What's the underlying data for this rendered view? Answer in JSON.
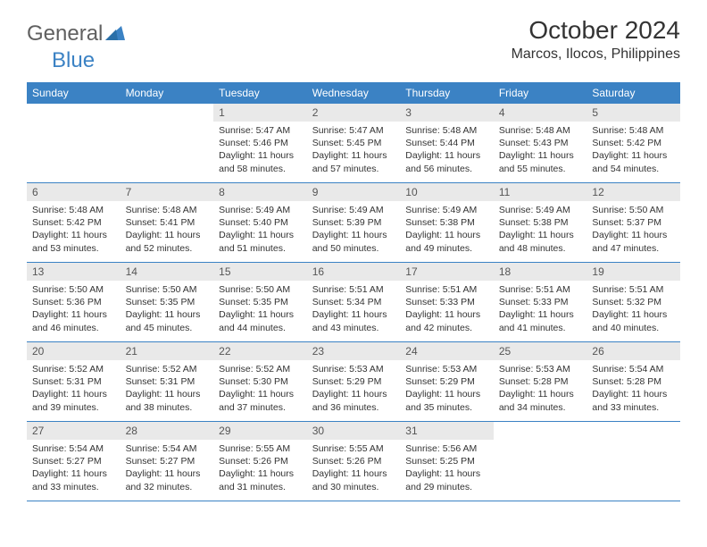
{
  "logo": {
    "text_general": "General",
    "text_blue": "Blue"
  },
  "title": "October 2024",
  "location": "Marcos, Ilocos, Philippines",
  "colors": {
    "header_bg": "#3b82c4",
    "daynum_bg": "#e9e9e9",
    "text": "#333333",
    "border": "#3b82c4"
  },
  "daynames": [
    "Sunday",
    "Monday",
    "Tuesday",
    "Wednesday",
    "Thursday",
    "Friday",
    "Saturday"
  ],
  "weeks": [
    [
      {
        "n": "",
        "sr": "",
        "ss": "",
        "dl": ""
      },
      {
        "n": "",
        "sr": "",
        "ss": "",
        "dl": ""
      },
      {
        "n": "1",
        "sr": "5:47 AM",
        "ss": "5:46 PM",
        "dl": "11 hours and 58 minutes."
      },
      {
        "n": "2",
        "sr": "5:47 AM",
        "ss": "5:45 PM",
        "dl": "11 hours and 57 minutes."
      },
      {
        "n": "3",
        "sr": "5:48 AM",
        "ss": "5:44 PM",
        "dl": "11 hours and 56 minutes."
      },
      {
        "n": "4",
        "sr": "5:48 AM",
        "ss": "5:43 PM",
        "dl": "11 hours and 55 minutes."
      },
      {
        "n": "5",
        "sr": "5:48 AM",
        "ss": "5:42 PM",
        "dl": "11 hours and 54 minutes."
      }
    ],
    [
      {
        "n": "6",
        "sr": "5:48 AM",
        "ss": "5:42 PM",
        "dl": "11 hours and 53 minutes."
      },
      {
        "n": "7",
        "sr": "5:48 AM",
        "ss": "5:41 PM",
        "dl": "11 hours and 52 minutes."
      },
      {
        "n": "8",
        "sr": "5:49 AM",
        "ss": "5:40 PM",
        "dl": "11 hours and 51 minutes."
      },
      {
        "n": "9",
        "sr": "5:49 AM",
        "ss": "5:39 PM",
        "dl": "11 hours and 50 minutes."
      },
      {
        "n": "10",
        "sr": "5:49 AM",
        "ss": "5:38 PM",
        "dl": "11 hours and 49 minutes."
      },
      {
        "n": "11",
        "sr": "5:49 AM",
        "ss": "5:38 PM",
        "dl": "11 hours and 48 minutes."
      },
      {
        "n": "12",
        "sr": "5:50 AM",
        "ss": "5:37 PM",
        "dl": "11 hours and 47 minutes."
      }
    ],
    [
      {
        "n": "13",
        "sr": "5:50 AM",
        "ss": "5:36 PM",
        "dl": "11 hours and 46 minutes."
      },
      {
        "n": "14",
        "sr": "5:50 AM",
        "ss": "5:35 PM",
        "dl": "11 hours and 45 minutes."
      },
      {
        "n": "15",
        "sr": "5:50 AM",
        "ss": "5:35 PM",
        "dl": "11 hours and 44 minutes."
      },
      {
        "n": "16",
        "sr": "5:51 AM",
        "ss": "5:34 PM",
        "dl": "11 hours and 43 minutes."
      },
      {
        "n": "17",
        "sr": "5:51 AM",
        "ss": "5:33 PM",
        "dl": "11 hours and 42 minutes."
      },
      {
        "n": "18",
        "sr": "5:51 AM",
        "ss": "5:33 PM",
        "dl": "11 hours and 41 minutes."
      },
      {
        "n": "19",
        "sr": "5:51 AM",
        "ss": "5:32 PM",
        "dl": "11 hours and 40 minutes."
      }
    ],
    [
      {
        "n": "20",
        "sr": "5:52 AM",
        "ss": "5:31 PM",
        "dl": "11 hours and 39 minutes."
      },
      {
        "n": "21",
        "sr": "5:52 AM",
        "ss": "5:31 PM",
        "dl": "11 hours and 38 minutes."
      },
      {
        "n": "22",
        "sr": "5:52 AM",
        "ss": "5:30 PM",
        "dl": "11 hours and 37 minutes."
      },
      {
        "n": "23",
        "sr": "5:53 AM",
        "ss": "5:29 PM",
        "dl": "11 hours and 36 minutes."
      },
      {
        "n": "24",
        "sr": "5:53 AM",
        "ss": "5:29 PM",
        "dl": "11 hours and 35 minutes."
      },
      {
        "n": "25",
        "sr": "5:53 AM",
        "ss": "5:28 PM",
        "dl": "11 hours and 34 minutes."
      },
      {
        "n": "26",
        "sr": "5:54 AM",
        "ss": "5:28 PM",
        "dl": "11 hours and 33 minutes."
      }
    ],
    [
      {
        "n": "27",
        "sr": "5:54 AM",
        "ss": "5:27 PM",
        "dl": "11 hours and 33 minutes."
      },
      {
        "n": "28",
        "sr": "5:54 AM",
        "ss": "5:27 PM",
        "dl": "11 hours and 32 minutes."
      },
      {
        "n": "29",
        "sr": "5:55 AM",
        "ss": "5:26 PM",
        "dl": "11 hours and 31 minutes."
      },
      {
        "n": "30",
        "sr": "5:55 AM",
        "ss": "5:26 PM",
        "dl": "11 hours and 30 minutes."
      },
      {
        "n": "31",
        "sr": "5:56 AM",
        "ss": "5:25 PM",
        "dl": "11 hours and 29 minutes."
      },
      {
        "n": "",
        "sr": "",
        "ss": "",
        "dl": ""
      },
      {
        "n": "",
        "sr": "",
        "ss": "",
        "dl": ""
      }
    ]
  ],
  "labels": {
    "sunrise": "Sunrise:",
    "sunset": "Sunset:",
    "daylight": "Daylight:"
  }
}
